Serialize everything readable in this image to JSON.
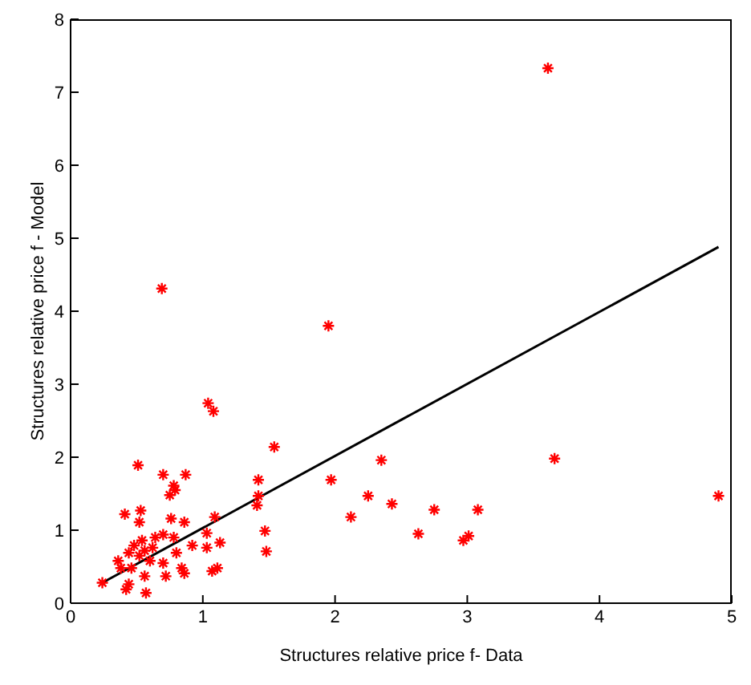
{
  "chart_data": {
    "type": "scatter",
    "xlabel": "Structures relative price f- Data",
    "ylabel": "Structures relative price f - Model",
    "xlim": [
      0,
      5
    ],
    "xticks": [
      0,
      1,
      2,
      3,
      4,
      5
    ],
    "ylim": [
      0,
      8
    ],
    "yticks": [
      0,
      1,
      2,
      3,
      4,
      5,
      6,
      7,
      8
    ],
    "grid": false,
    "legend": false,
    "marker": "cross",
    "series": [
      {
        "color": "#ff0000",
        "x": [
          3.61,
          0.69,
          1.95,
          1.04,
          1.08,
          1.54,
          1.97,
          2.12,
          2.25,
          2.35,
          2.43,
          2.63,
          2.75,
          2.97,
          3.01,
          3.08,
          3.66,
          4.9,
          0.24,
          0.51,
          0.7,
          0.87,
          0.78,
          0.75,
          0.79,
          1.42,
          0.41,
          0.53,
          0.52,
          0.76,
          0.86,
          1.09,
          1.41,
          1.42,
          1.47,
          1.48,
          1.13,
          1.03,
          1.03,
          0.92,
          0.78,
          0.7,
          0.8,
          0.36,
          0.38,
          0.44,
          0.48,
          0.52,
          0.56,
          0.62,
          0.6,
          0.7,
          0.72,
          0.84,
          0.86,
          1.07,
          1.11,
          0.44,
          0.42,
          0.57,
          0.56,
          0.46,
          0.54,
          0.64
        ],
        "values": [
          7.33,
          4.31,
          3.8,
          2.74,
          2.63,
          2.14,
          1.69,
          1.18,
          1.47,
          1.96,
          1.36,
          0.95,
          1.28,
          0.86,
          0.92,
          1.28,
          1.98,
          1.47,
          0.28,
          1.89,
          1.76,
          1.76,
          1.61,
          1.48,
          1.55,
          1.69,
          1.22,
          1.27,
          1.11,
          1.16,
          1.11,
          1.18,
          1.34,
          1.47,
          0.99,
          0.71,
          0.83,
          0.96,
          0.76,
          0.79,
          0.9,
          0.94,
          0.69,
          0.58,
          0.48,
          0.69,
          0.79,
          0.65,
          0.72,
          0.76,
          0.58,
          0.55,
          0.37,
          0.48,
          0.41,
          0.44,
          0.48,
          0.26,
          0.19,
          0.14,
          0.37,
          0.48,
          0.86,
          0.9
        ]
      },
      {
        "type": "line",
        "color": "#000000",
        "x": [
          0.24,
          4.9
        ],
        "values": [
          0.28,
          4.88
        ],
        "marker": "none",
        "line_style": "solid"
      }
    ]
  }
}
